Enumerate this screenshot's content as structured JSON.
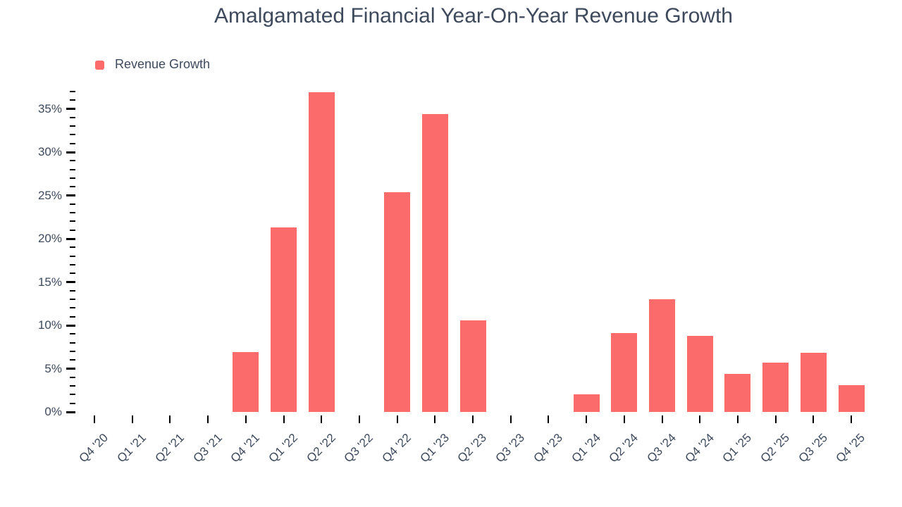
{
  "chart_data": {
    "type": "bar",
    "title": "Amalgamated Financial Year-On-Year Revenue Growth",
    "categories": [
      "Q4 '20",
      "Q1 '21",
      "Q2 '21",
      "Q3 '21",
      "Q4 '21",
      "Q1 '22",
      "Q2 '22",
      "Q3 '22",
      "Q4 '22",
      "Q1 '23",
      "Q2 '23",
      "Q3 '23",
      "Q4 '23",
      "Q1 '24",
      "Q2 '24",
      "Q3 '24",
      "Q4 '24",
      "Q1 '25",
      "Q2 '25",
      "Q3 '25",
      "Q4 '25"
    ],
    "series": [
      {
        "name": "Revenue Growth",
        "color": "#FC6B6B",
        "values": [
          null,
          null,
          null,
          null,
          6.9,
          21.3,
          36.9,
          null,
          25.4,
          34.4,
          10.6,
          null,
          null,
          2.0,
          9.1,
          13.0,
          8.8,
          4.4,
          5.7,
          6.8,
          3.1
        ]
      }
    ],
    "xlabel": "",
    "ylabel": "",
    "y_axis": {
      "min": 0,
      "max": 37,
      "major_step": 5,
      "minor_step": 1,
      "tick_labels": [
        "0%",
        "5%",
        "10%",
        "15%",
        "20%",
        "25%",
        "30%",
        "35%"
      ]
    },
    "legend": {
      "position": "top-left",
      "items": [
        {
          "label": "Revenue Growth",
          "color": "#FC6B6B"
        }
      ]
    },
    "grid": false,
    "background": "#FFFFFF",
    "text_color": "#3E4A5C",
    "tick_color": "#000000"
  }
}
